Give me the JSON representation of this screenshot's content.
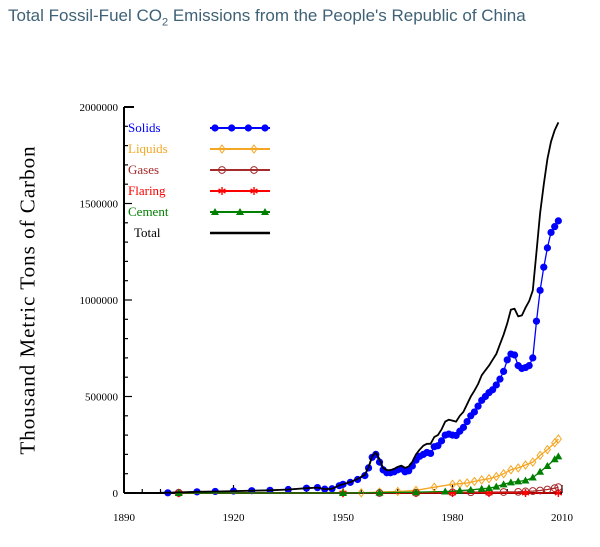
{
  "title": {
    "prefix": "Total Fossil-Fuel CO",
    "subscript": "2",
    "suffix": " Emissions from the People's Republic of China"
  },
  "chart_data": {
    "type": "line",
    "title": "Total Fossil-Fuel CO2 Emissions from the People's Republic of China",
    "xlabel": "",
    "ylabel": "Thousand Metric Tons of Carbon",
    "xlim": [
      1890,
      2010
    ],
    "ylim": [
      0,
      2000000
    ],
    "x_ticks": [
      1890,
      1920,
      1950,
      1980,
      2010
    ],
    "y_ticks": [
      0,
      500000,
      1000000,
      1500000,
      2000000
    ],
    "legend_position": "top-left",
    "series": [
      {
        "name": "Solids",
        "color": "#0000ff",
        "marker": "filled-circle",
        "points": [
          [
            1902,
            1000
          ],
          [
            1905,
            3000
          ],
          [
            1910,
            6000
          ],
          [
            1915,
            8000
          ],
          [
            1920,
            10000
          ],
          [
            1925,
            12000
          ],
          [
            1930,
            14000
          ],
          [
            1935,
            18000
          ],
          [
            1940,
            25000
          ],
          [
            1943,
            28000
          ],
          [
            1945,
            20000
          ],
          [
            1947,
            22000
          ],
          [
            1949,
            38000
          ],
          [
            1950,
            45000
          ],
          [
            1952,
            55000
          ],
          [
            1954,
            70000
          ],
          [
            1956,
            90000
          ],
          [
            1957,
            130000
          ],
          [
            1958,
            185000
          ],
          [
            1959,
            200000
          ],
          [
            1960,
            160000
          ],
          [
            1961,
            120000
          ],
          [
            1962,
            105000
          ],
          [
            1963,
            105000
          ],
          [
            1964,
            110000
          ],
          [
            1965,
            120000
          ],
          [
            1966,
            125000
          ],
          [
            1967,
            110000
          ],
          [
            1968,
            115000
          ],
          [
            1969,
            140000
          ],
          [
            1970,
            170000
          ],
          [
            1971,
            190000
          ],
          [
            1972,
            200000
          ],
          [
            1973,
            210000
          ],
          [
            1974,
            205000
          ],
          [
            1975,
            240000
          ],
          [
            1976,
            245000
          ],
          [
            1977,
            270000
          ],
          [
            1978,
            300000
          ],
          [
            1979,
            305000
          ],
          [
            1980,
            300000
          ],
          [
            1981,
            298000
          ],
          [
            1982,
            320000
          ],
          [
            1983,
            340000
          ],
          [
            1984,
            370000
          ],
          [
            1985,
            400000
          ],
          [
            1986,
            420000
          ],
          [
            1987,
            450000
          ],
          [
            1988,
            480000
          ],
          [
            1989,
            500000
          ],
          [
            1990,
            520000
          ],
          [
            1991,
            535000
          ],
          [
            1992,
            560000
          ],
          [
            1993,
            590000
          ],
          [
            1994,
            630000
          ],
          [
            1995,
            690000
          ],
          [
            1996,
            720000
          ],
          [
            1997,
            715000
          ],
          [
            1998,
            660000
          ],
          [
            1999,
            645000
          ],
          [
            2000,
            650000
          ],
          [
            2001,
            660000
          ],
          [
            2002,
            700000
          ],
          [
            2003,
            890000
          ],
          [
            2004,
            1050000
          ],
          [
            2005,
            1170000
          ],
          [
            2006,
            1270000
          ],
          [
            2007,
            1350000
          ],
          [
            2008,
            1380000
          ],
          [
            2009,
            1410000
          ]
        ]
      },
      {
        "name": "Liquids",
        "color": "#f5a623",
        "marker": "open-diamond",
        "points": [
          [
            1905,
            0
          ],
          [
            1950,
            0
          ],
          [
            1955,
            1000
          ],
          [
            1960,
            5000
          ],
          [
            1965,
            8000
          ],
          [
            1970,
            14000
          ],
          [
            1975,
            30000
          ],
          [
            1980,
            45000
          ],
          [
            1982,
            48000
          ],
          [
            1984,
            52000
          ],
          [
            1986,
            60000
          ],
          [
            1988,
            68000
          ],
          [
            1990,
            74000
          ],
          [
            1992,
            85000
          ],
          [
            1994,
            100000
          ],
          [
            1996,
            120000
          ],
          [
            1998,
            130000
          ],
          [
            2000,
            145000
          ],
          [
            2002,
            160000
          ],
          [
            2004,
            195000
          ],
          [
            2006,
            225000
          ],
          [
            2008,
            260000
          ],
          [
            2009,
            280000
          ]
        ]
      },
      {
        "name": "Gases",
        "color": "#a52a2a",
        "marker": "open-circle",
        "points": [
          [
            1905,
            0
          ],
          [
            1960,
            0
          ],
          [
            1970,
            1000
          ],
          [
            1980,
            3000
          ],
          [
            1985,
            4000
          ],
          [
            1990,
            4000
          ],
          [
            1994,
            5000
          ],
          [
            1998,
            6000
          ],
          [
            2000,
            8000
          ],
          [
            2002,
            10000
          ],
          [
            2004,
            13000
          ],
          [
            2006,
            18000
          ],
          [
            2008,
            25000
          ],
          [
            2009,
            30000
          ]
        ]
      },
      {
        "name": "Flaring",
        "color": "#ff0000",
        "marker": "asterisk",
        "points": [
          [
            1905,
            0
          ],
          [
            1950,
            0
          ],
          [
            1970,
            0
          ],
          [
            1980,
            0
          ],
          [
            1990,
            0
          ],
          [
            2000,
            0
          ],
          [
            2009,
            0
          ]
        ]
      },
      {
        "name": "Cement",
        "color": "#008000",
        "marker": "filled-triangle",
        "points": [
          [
            1905,
            0
          ],
          [
            1950,
            0
          ],
          [
            1960,
            2000
          ],
          [
            1970,
            4000
          ],
          [
            1978,
            8000
          ],
          [
            1982,
            12000
          ],
          [
            1985,
            16000
          ],
          [
            1988,
            22000
          ],
          [
            1990,
            25000
          ],
          [
            1992,
            33000
          ],
          [
            1994,
            45000
          ],
          [
            1996,
            55000
          ],
          [
            1998,
            60000
          ],
          [
            2000,
            65000
          ],
          [
            2002,
            80000
          ],
          [
            2004,
            110000
          ],
          [
            2006,
            140000
          ],
          [
            2008,
            175000
          ],
          [
            2009,
            190000
          ]
        ]
      },
      {
        "name": "Total",
        "color": "#000000",
        "marker": "none",
        "points": [
          [
            1900,
            1000
          ],
          [
            1905,
            3000
          ],
          [
            1910,
            6000
          ],
          [
            1915,
            8000
          ],
          [
            1920,
            10000
          ],
          [
            1925,
            12000
          ],
          [
            1930,
            14000
          ],
          [
            1935,
            18000
          ],
          [
            1940,
            25000
          ],
          [
            1943,
            28000
          ],
          [
            1945,
            20000
          ],
          [
            1947,
            22000
          ],
          [
            1949,
            40000
          ],
          [
            1950,
            45000
          ],
          [
            1952,
            57000
          ],
          [
            1954,
            73000
          ],
          [
            1956,
            95000
          ],
          [
            1957,
            135000
          ],
          [
            1958,
            190000
          ],
          [
            1959,
            210000
          ],
          [
            1960,
            175000
          ],
          [
            1961,
            130000
          ],
          [
            1962,
            118000
          ],
          [
            1963,
            118000
          ],
          [
            1964,
            125000
          ],
          [
            1965,
            135000
          ],
          [
            1966,
            142000
          ],
          [
            1967,
            130000
          ],
          [
            1968,
            138000
          ],
          [
            1969,
            162000
          ],
          [
            1970,
            200000
          ],
          [
            1971,
            225000
          ],
          [
            1972,
            245000
          ],
          [
            1973,
            255000
          ],
          [
            1974,
            255000
          ],
          [
            1975,
            290000
          ],
          [
            1976,
            300000
          ],
          [
            1977,
            330000
          ],
          [
            1978,
            370000
          ],
          [
            1979,
            380000
          ],
          [
            1980,
            375000
          ],
          [
            1981,
            370000
          ],
          [
            1982,
            400000
          ],
          [
            1983,
            420000
          ],
          [
            1984,
            460000
          ],
          [
            1985,
            500000
          ],
          [
            1986,
            530000
          ],
          [
            1987,
            565000
          ],
          [
            1988,
            610000
          ],
          [
            1989,
            635000
          ],
          [
            1990,
            660000
          ],
          [
            1991,
            690000
          ],
          [
            1992,
            720000
          ],
          [
            1993,
            770000
          ],
          [
            1994,
            820000
          ],
          [
            1995,
            880000
          ],
          [
            1996,
            950000
          ],
          [
            1997,
            955000
          ],
          [
            1998,
            915000
          ],
          [
            1999,
            920000
          ],
          [
            2000,
            960000
          ],
          [
            2001,
            995000
          ],
          [
            2002,
            1050000
          ],
          [
            2003,
            1250000
          ],
          [
            2004,
            1450000
          ],
          [
            2005,
            1600000
          ],
          [
            2006,
            1730000
          ],
          [
            2007,
            1820000
          ],
          [
            2008,
            1880000
          ],
          [
            2009,
            1920000
          ]
        ]
      }
    ]
  }
}
